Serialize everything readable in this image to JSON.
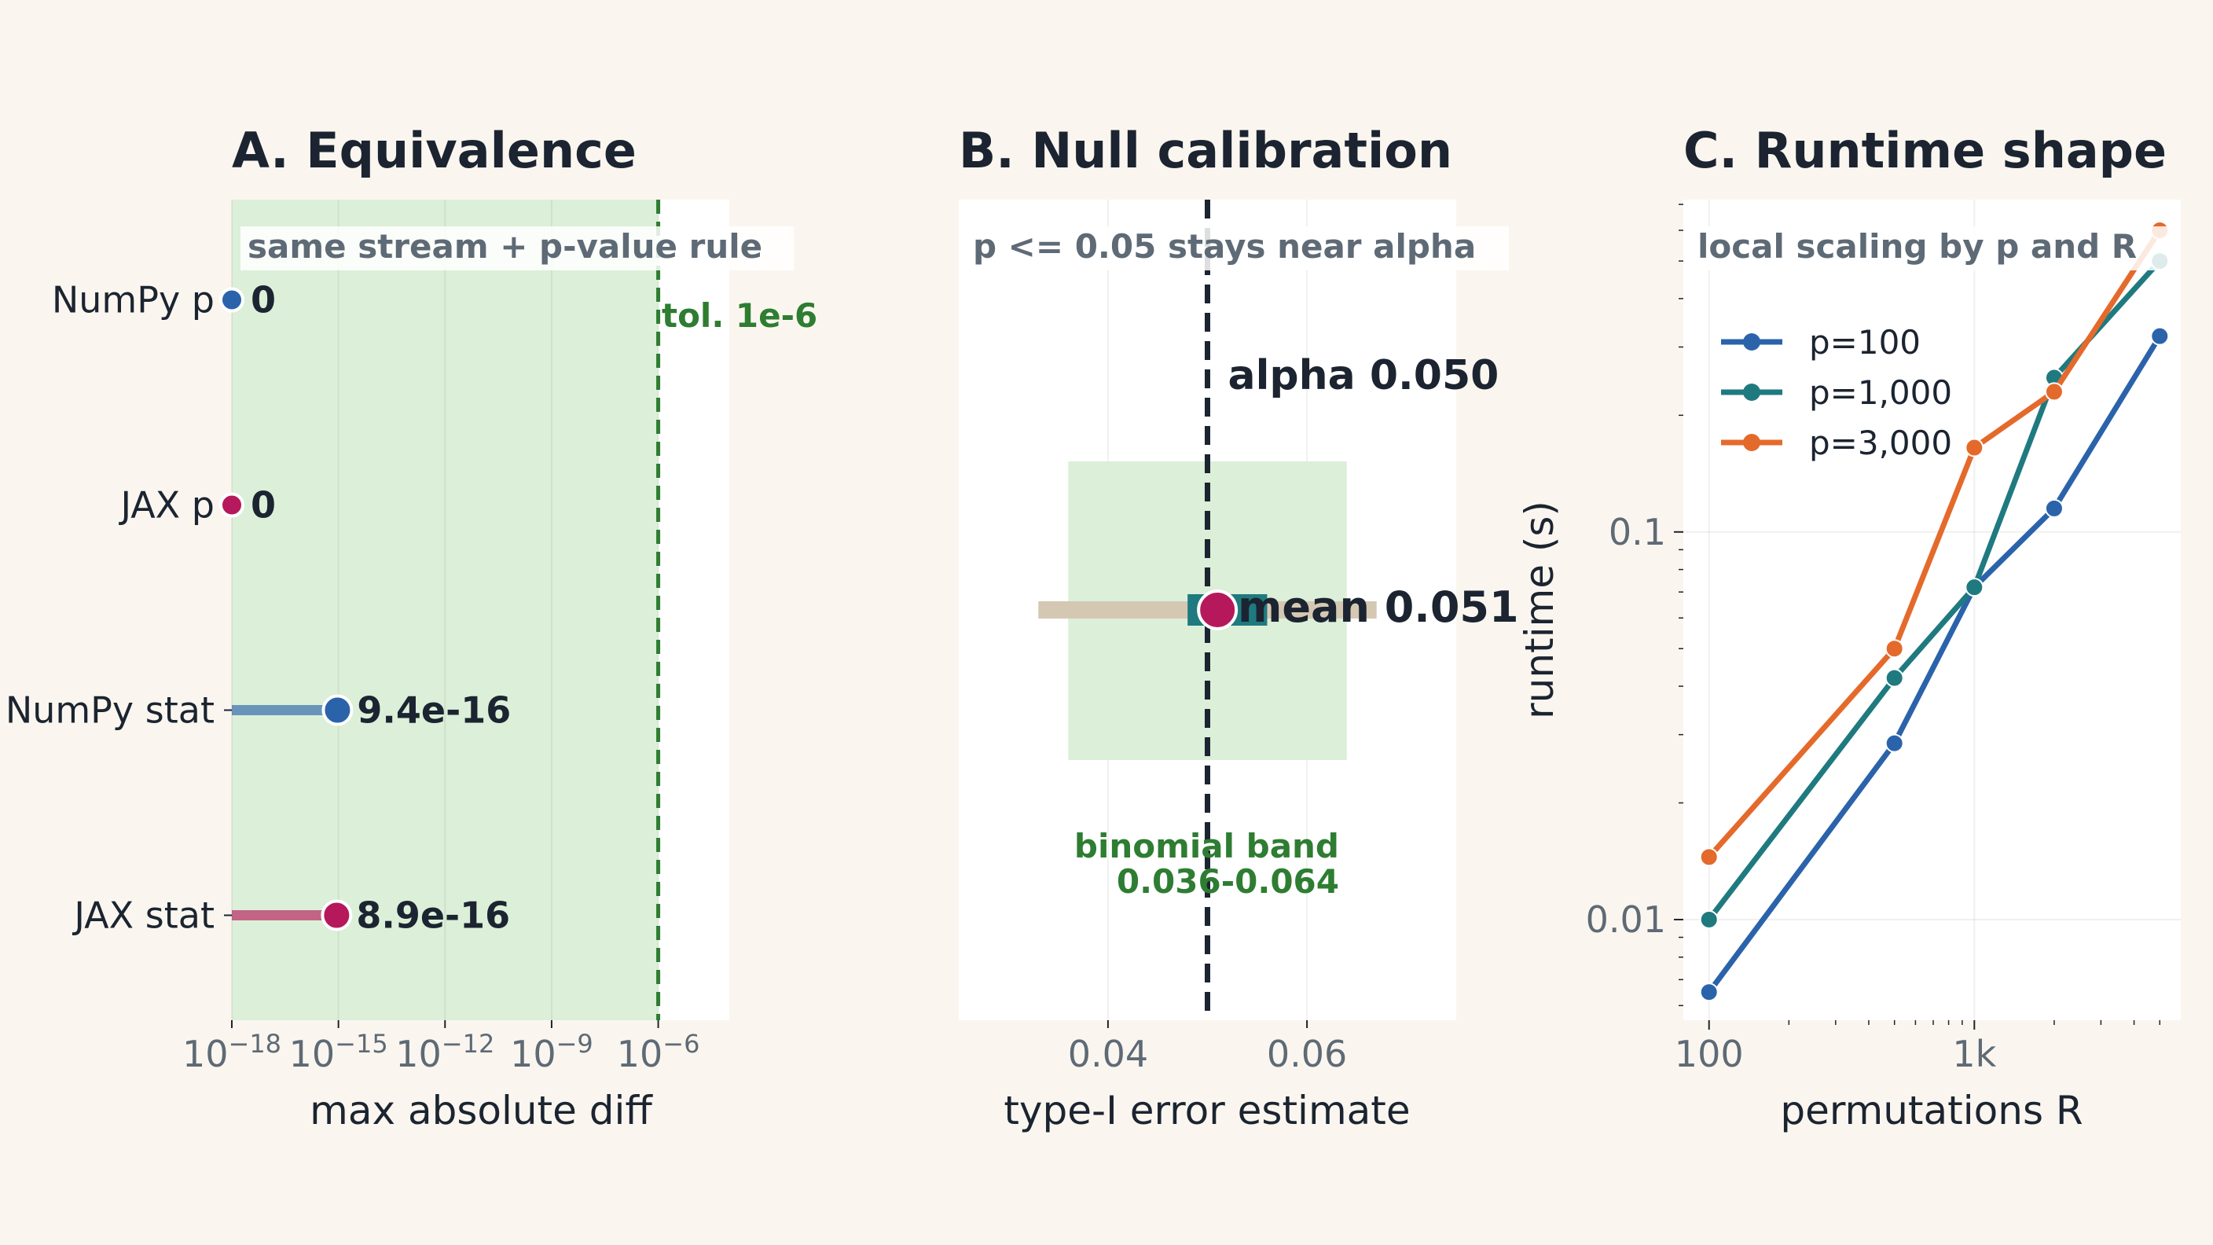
{
  "colors": {
    "background": "#faf6ef",
    "panel": "#ffffff",
    "ink": "#1b2430",
    "muted": "#5e6a75",
    "green": "#2e7d32",
    "band_green": "#dcefd8",
    "blue": "#2b63ab",
    "teal": "#1f7a80",
    "orange": "#e46a2c",
    "crimson": "#b5195b",
    "tan": "#d5c8b3"
  },
  "chart_data": [
    {
      "type": "scatter",
      "panel_id": "A",
      "title": "A. Equivalence",
      "annotation": "same stream + p-value rule",
      "xlabel": "max absolute diff",
      "ylabel": "",
      "xscale": "log",
      "xlim": [
        1e-18,
        0.0001
      ],
      "xticks": [
        {
          "value": 1e-18,
          "base": "10",
          "exp": "−18"
        },
        {
          "value": 1e-15,
          "base": "10",
          "exp": "−15"
        },
        {
          "value": 1e-12,
          "base": "10",
          "exp": "−12"
        },
        {
          "value": 1e-09,
          "base": "10",
          "exp": "−9"
        },
        {
          "value": 1e-06,
          "base": "10",
          "exp": "−6"
        }
      ],
      "categories": [
        "NumPy p",
        "JAX p",
        "NumPy stat",
        "JAX stat"
      ],
      "values": [
        0,
        0,
        9.4e-16,
        8.9e-16
      ],
      "value_labels": [
        "0",
        "0",
        "9.4e-16",
        "8.9e-16"
      ],
      "point_colors": [
        "#2b63ab",
        "#b5195b",
        "#2b63ab",
        "#b5195b"
      ],
      "tolerance": {
        "value": 1e-06,
        "label": "tol. 1e-6"
      },
      "grid": true
    },
    {
      "type": "scatter",
      "panel_id": "B",
      "title": "B. Null calibration",
      "annotation": "p <= 0.05 stays near alpha",
      "xlabel": "type-I error estimate",
      "ylabel": "",
      "xlim": [
        0.025,
        0.075
      ],
      "xticks": [
        "0.04",
        "0.06"
      ],
      "alpha": {
        "value": 0.05,
        "label": "alpha 0.050"
      },
      "band": {
        "low": 0.036,
        "high": 0.064,
        "label_line1": "binomial band",
        "label_line2": "0.036-0.064"
      },
      "range_bar": {
        "low": 0.033,
        "high": 0.067
      },
      "inner_box": {
        "low": 0.048,
        "high": 0.056
      },
      "mean": {
        "value": 0.051,
        "label": "mean 0.051"
      },
      "grid": true
    },
    {
      "type": "line",
      "panel_id": "C",
      "title": "C. Runtime shape",
      "annotation": "local scaling by p and R",
      "xlabel": "permutations R",
      "ylabel": "runtime (s)",
      "xscale": "log",
      "yscale": "log",
      "xlim": [
        80,
        6000
      ],
      "ylim": [
        0.0055,
        0.72
      ],
      "xticks": [
        {
          "value": 100,
          "label": "100"
        },
        {
          "value": 1000,
          "label": "1k"
        }
      ],
      "yticks": [
        {
          "value": 0.01,
          "label": "0.01"
        },
        {
          "value": 0.1,
          "label": "0.1"
        }
      ],
      "x": [
        100,
        500,
        1000,
        2000,
        5000
      ],
      "series": [
        {
          "name": "p=100",
          "color": "#2b63ab",
          "values": [
            0.0065,
            0.0285,
            0.072,
            0.115,
            0.32
          ]
        },
        {
          "name": "p=1,000",
          "color": "#1f7a80",
          "values": [
            0.01,
            0.042,
            0.072,
            0.25,
            0.5
          ]
        },
        {
          "name": "p=3,000",
          "color": "#e46a2c",
          "values": [
            0.0145,
            0.05,
            0.165,
            0.23,
            0.6
          ]
        }
      ],
      "legend": "top-left",
      "grid": true
    }
  ]
}
